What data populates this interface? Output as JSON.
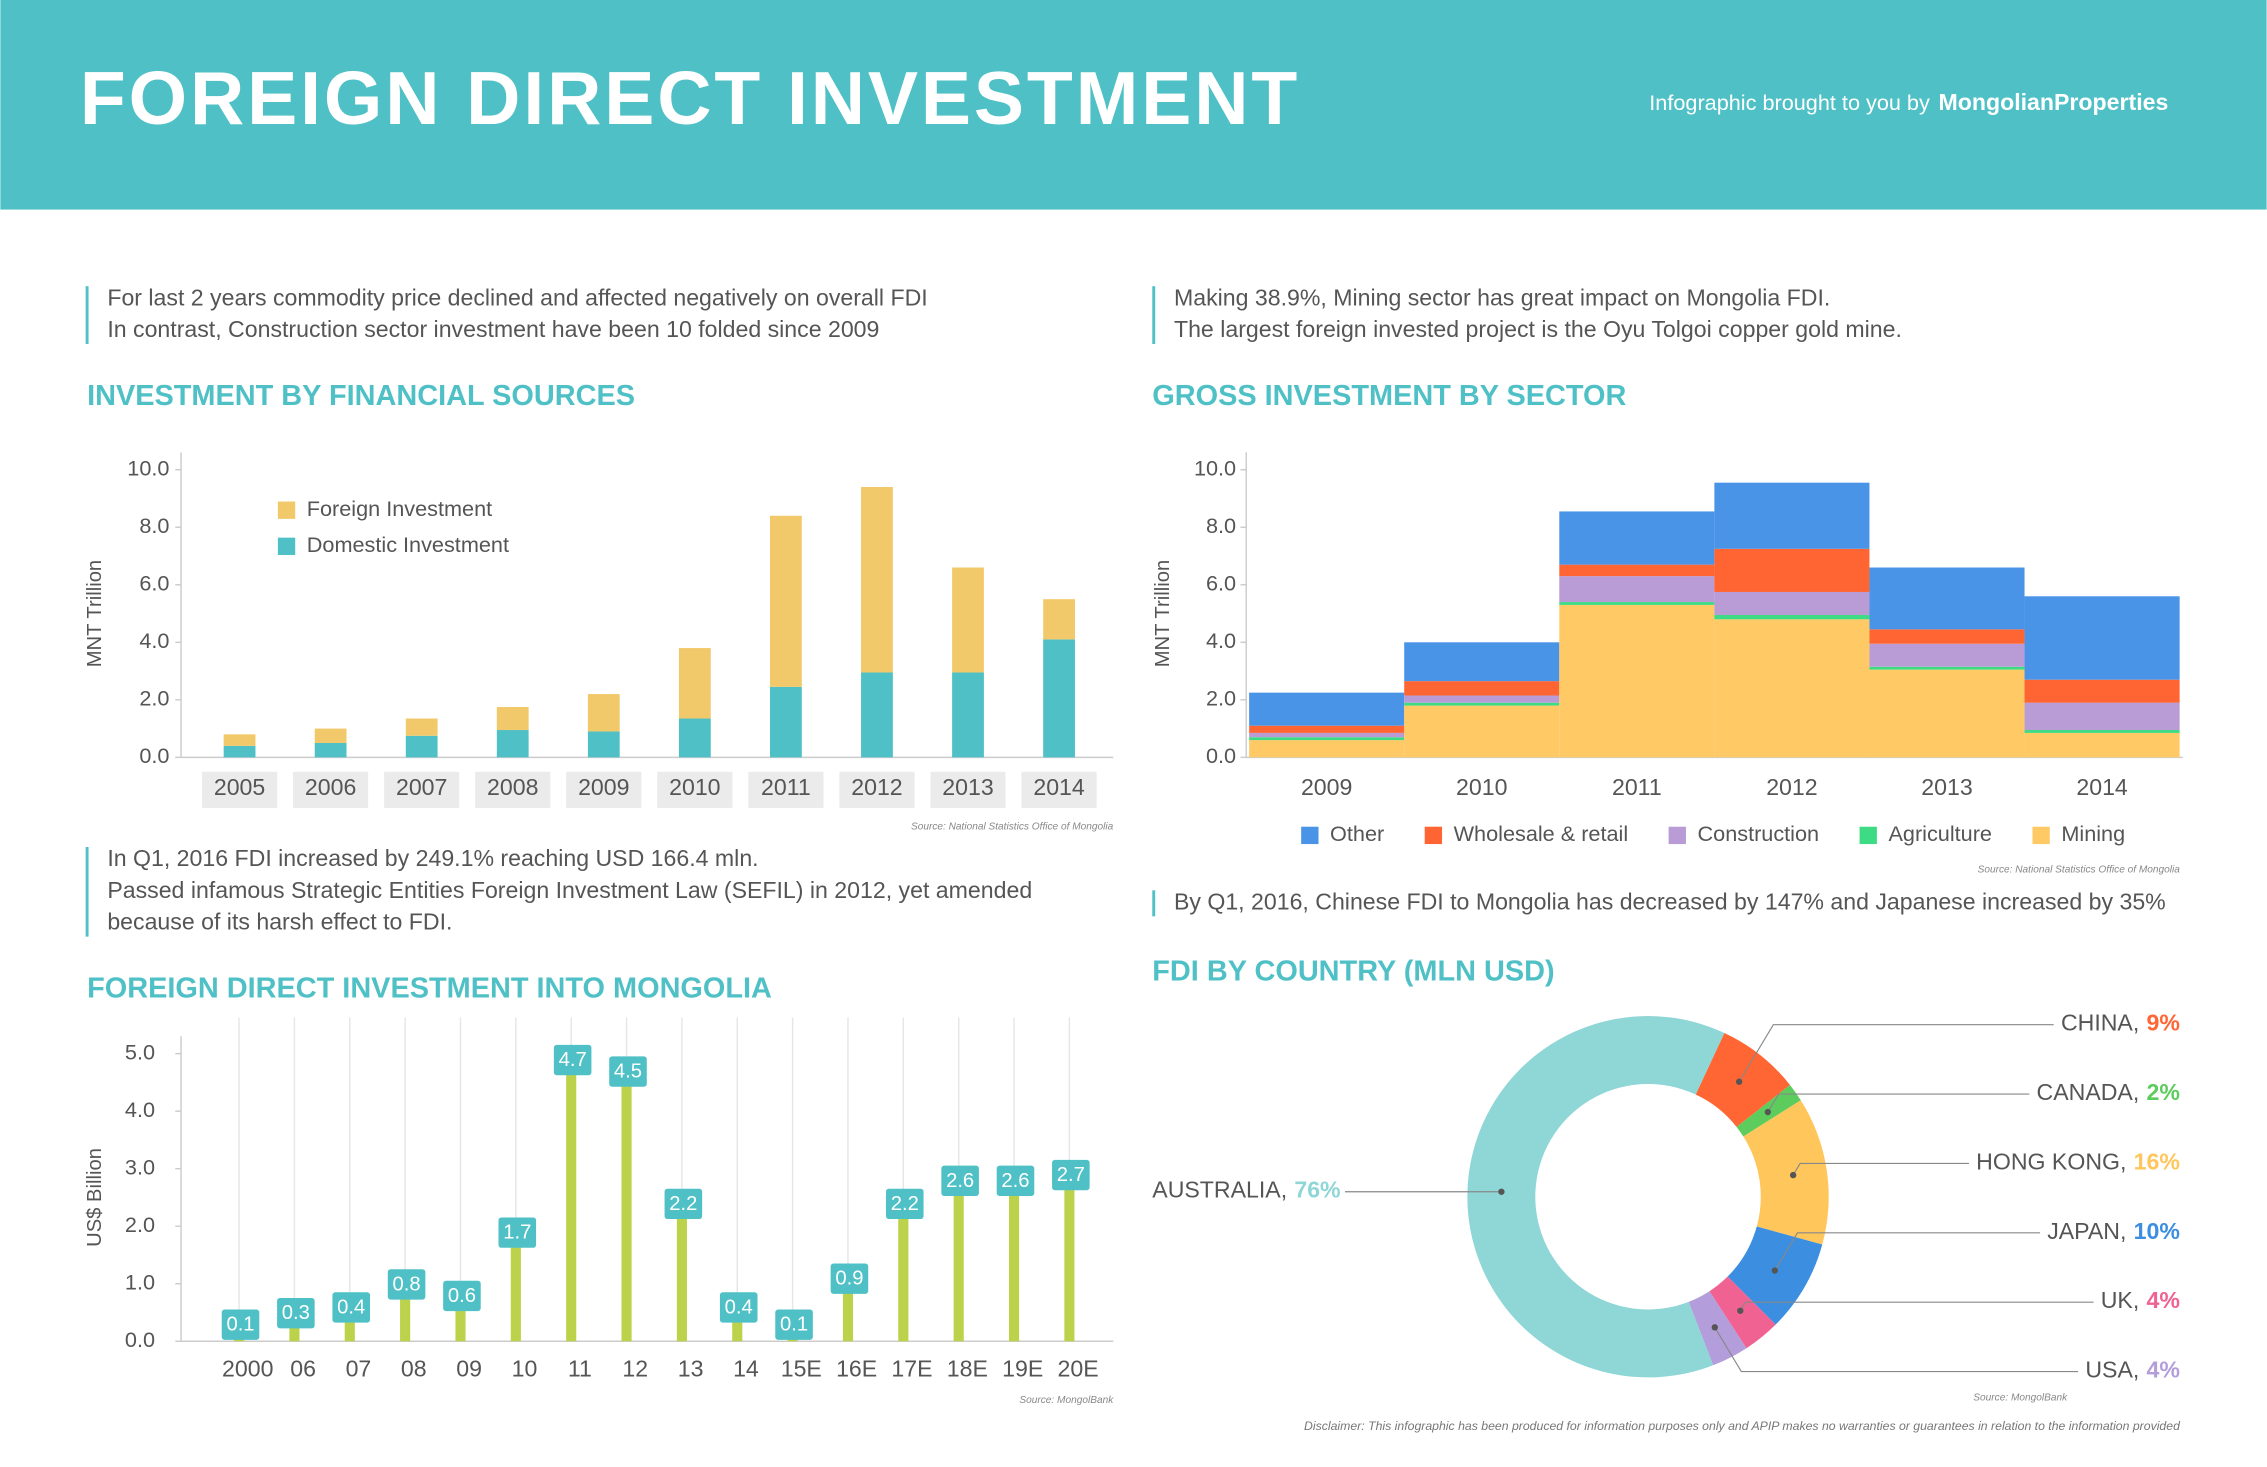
{
  "header": {
    "title": "FOREIGN DIRECT INVESTMENT",
    "credit": "Infographic brought to you by",
    "brand": "MongolianProperties"
  },
  "notes": [
    [
      "For last 2 years  commodity price declined and affected negatively on overall FDI",
      "In contrast, Construction sector investment have been 10 folded since 2009"
    ],
    [
      "Making 38.9%, Mining sector has great impact on Mongolia FDI.",
      "The largest foreign invested project is the Oyu Tolgoi copper gold mine."
    ],
    [
      "In Q1, 2016 FDI increased by 249.1% reaching USD 166.4 mln.",
      "Passed infamous Strategic Entities Foreign Investment Law (SEFIL) in 2012, yet amended",
      "because of its harsh effect to FDI."
    ],
    [
      "By Q1, 2016, Chinese FDI to Mongolia has decreased by 147% and Japanese increased by 35%"
    ]
  ],
  "disclaimer": "Disclaimer: This infographic has been produced for information purposes only and APIP makes no warranties or guarantees in relation to the information provided",
  "chart_data": [
    {
      "type": "bar",
      "stacked": true,
      "title": "INVESTMENT BY FINANCIAL SOURCES",
      "ylabel": "MNT Trillion",
      "source": "Source: National Statistics Office of Mongolia",
      "categories": [
        "2005",
        "2006",
        "2007",
        "2008",
        "2009",
        "2010",
        "2011",
        "2012",
        "2013",
        "2014"
      ],
      "series": [
        {
          "name": "Foreign Investment",
          "color": "#f2c96a",
          "values": [
            0.4,
            0.5,
            0.6,
            0.8,
            1.3,
            2.45,
            5.95,
            6.45,
            3.65,
            1.4
          ]
        },
        {
          "name": "Domestic Investment",
          "color": "#4fc1c6",
          "values": [
            0.4,
            0.5,
            0.75,
            0.95,
            0.9,
            1.35,
            2.45,
            2.95,
            2.95,
            4.1
          ]
        }
      ],
      "ylim": [
        0,
        10
      ],
      "yticks": [
        {
          "value": 0,
          "label": "0.0"
        },
        {
          "value": 2,
          "label": "2.0"
        },
        {
          "value": 4,
          "label": "4.0"
        },
        {
          "value": 6,
          "label": "6.0"
        },
        {
          "value": 8,
          "label": "8.0"
        },
        {
          "value": 10,
          "label": "10.0"
        }
      ],
      "legend": "upper left",
      "grid": false
    },
    {
      "type": "bar",
      "stacked": true,
      "title": "GROSS INVESTMENT BY SECTOR",
      "ylabel": "MNT Trillion",
      "source": "Source: National Statistics Office of Mongolia",
      "categories": [
        "2009",
        "2010",
        "2011",
        "2012",
        "2013",
        "2014"
      ],
      "series": [
        {
          "name": "Other",
          "color": "#4a94e8",
          "values": [
            1.15,
            1.35,
            1.85,
            2.3,
            2.15,
            2.9
          ]
        },
        {
          "name": "Wholesale & retail",
          "color": "#ff6433",
          "values": [
            0.25,
            0.5,
            0.4,
            1.5,
            0.5,
            0.8
          ]
        },
        {
          "name": "Construction",
          "color": "#b99cd6",
          "values": [
            0.15,
            0.25,
            0.9,
            0.8,
            0.8,
            0.95
          ]
        },
        {
          "name": "Agriculture",
          "color": "#3ddc84",
          "values": [
            0.1,
            0.1,
            0.1,
            0.15,
            0.1,
            0.1
          ]
        },
        {
          "name": "Mining",
          "color": "#ffc966",
          "values": [
            0.6,
            1.8,
            5.3,
            4.8,
            3.05,
            0.85
          ]
        }
      ],
      "ylim": [
        0,
        10
      ],
      "yticks": [
        {
          "value": 0,
          "label": "0.0"
        },
        {
          "value": 2,
          "label": "2.0"
        },
        {
          "value": 4,
          "label": "4.0"
        },
        {
          "value": 6,
          "label": "6.0"
        },
        {
          "value": 8,
          "label": "8.0"
        },
        {
          "value": 10,
          "label": "10.0"
        }
      ],
      "legend": "bottom",
      "grid": false
    },
    {
      "type": "bar",
      "title": "FOREIGN DIRECT INVESTMENT INTO MONGOLIA",
      "ylabel": "US$ Billion",
      "source": "Source: MongolBank",
      "categories": [
        "2000",
        "06",
        "07",
        "08",
        "09",
        "10",
        "11",
        "12",
        "13",
        "14",
        "15E",
        "16E",
        "17E",
        "18E",
        "19E",
        "20E"
      ],
      "values": [
        0.1,
        0.3,
        0.4,
        0.8,
        0.6,
        1.7,
        4.7,
        4.5,
        2.2,
        0.4,
        0.1,
        0.9,
        2.2,
        2.6,
        2.6,
        2.7
      ],
      "color": "#bcd24a",
      "label_color": "#4fc1c6",
      "ylim": [
        0,
        5
      ],
      "yticks": [
        {
          "value": 0,
          "label": "0.0"
        },
        {
          "value": 1,
          "label": "1.0"
        },
        {
          "value": 2,
          "label": "2.0"
        },
        {
          "value": 3,
          "label": "3.0"
        },
        {
          "value": 4,
          "label": "4.0"
        },
        {
          "value": 5,
          "label": "5.0"
        }
      ],
      "grid": "x"
    },
    {
      "type": "pie",
      "donut": true,
      "title": "FDI BY COUNTRY (MLN USD)",
      "source": "Source: MongolBank",
      "categories": [
        "CHINA,",
        "CANADA,",
        "HONG KONG,",
        "JAPAN,",
        "UK,",
        "USA,",
        "AUSTRALIA,"
      ],
      "values": [
        9,
        2,
        16,
        10,
        4,
        4,
        76
      ],
      "value_labels": [
        "9%",
        "2%",
        "16%",
        "10%",
        "4%",
        "4%",
        "76%"
      ],
      "colors": [
        "#ff6633",
        "#5ccc5c",
        "#ffc65c",
        "#3b8ee0",
        "#f06292",
        "#b39ddb",
        "#8fd6d6"
      ]
    }
  ]
}
